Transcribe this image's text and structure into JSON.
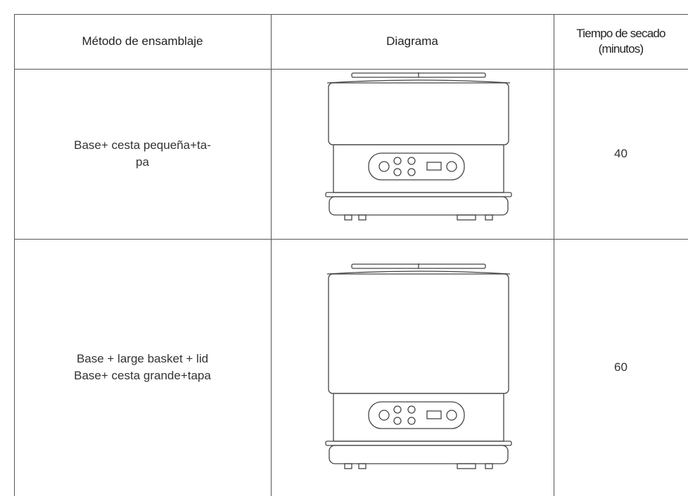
{
  "table": {
    "header": [
      "Método de ensamblaje",
      "Diagrama",
      [
        "Tiempo de secado",
        "(minutos)"
      ]
    ],
    "rows": [
      {
        "method": [
          "Base+ cesta pequeña+ta-",
          "pa"
        ],
        "time": "40"
      },
      {
        "method": [
          "Base + large basket + lid",
          "Base+ cesta grande+tapa"
        ],
        "time": "60"
      }
    ]
  }
}
